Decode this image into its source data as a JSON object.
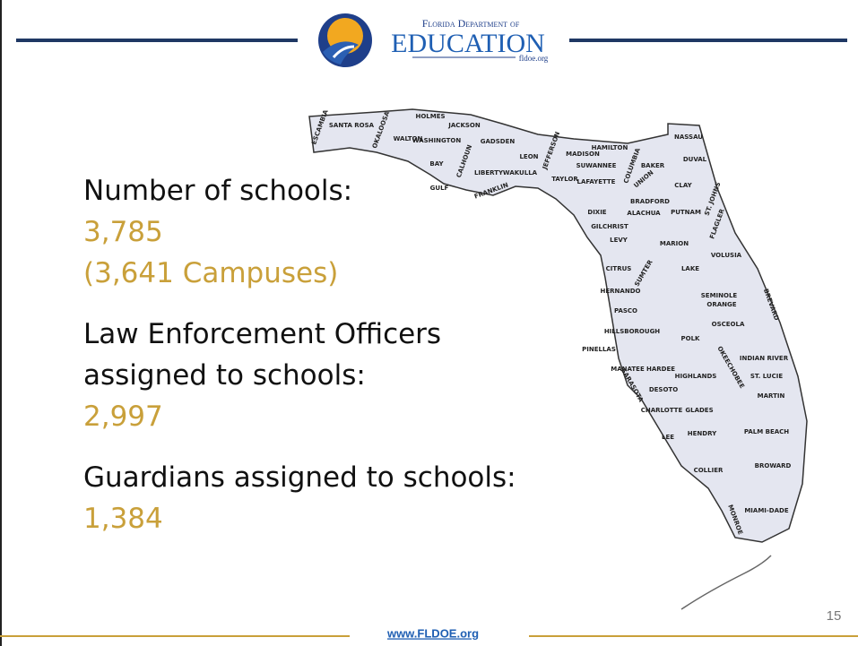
{
  "header": {
    "org_line": "Florida Department of",
    "org_name": "EDUCATION",
    "org_url": "fldoe.org"
  },
  "content": [
    {
      "label": [
        "Number of schools:"
      ],
      "value": "3,785",
      "note": "(3,641 Campuses)"
    },
    {
      "label": [
        "Law Enforcement Officers",
        "assigned to schools:"
      ],
      "value": "2,997"
    },
    {
      "label": [
        "Guardians assigned to schools:"
      ],
      "value": "1,384"
    }
  ],
  "map": {
    "counties": [
      "ESCAMBIA",
      "SANTA ROSA",
      "OKALOOSA",
      "WALTON",
      "HOLMES",
      "WASHINGTON",
      "JACKSON",
      "BAY",
      "CALHOUN",
      "GADSDEN",
      "GULF",
      "LIBERTY",
      "WAKULLA",
      "FRANKLIN",
      "LEON",
      "JEFFERSON",
      "MADISON",
      "TAYLOR",
      "HAMILTON",
      "SUWANNEE",
      "LAFAYETTE",
      "COLUMBIA",
      "BAKER",
      "UNION",
      "NASSAU",
      "DUVAL",
      "CLAY",
      "ST. JOHNS",
      "DIXIE",
      "BRADFORD",
      "ALACHUA",
      "PUTNAM",
      "FLAGLER",
      "GILCHRIST",
      "LEVY",
      "MARION",
      "VOLUSIA",
      "CITRUS",
      "SUMTER",
      "LAKE",
      "HERNANDO",
      "PASCO",
      "SEMINOLE",
      "ORANGE",
      "BREVARD",
      "HILLSBOROUGH",
      "PINELLAS",
      "POLK",
      "OSCEOLA",
      "INDIAN RIVER",
      "MANATEE",
      "HARDEE",
      "HIGHLANDS",
      "OKEECHOBEE",
      "ST. LUCIE",
      "SARASOTA",
      "DESOTO",
      "MARTIN",
      "CHARLOTTE",
      "GLADES",
      "LEE",
      "HENDRY",
      "PALM BEACH",
      "COLLIER",
      "BROWARD",
      "MIAMI-DADE",
      "MONROE"
    ]
  },
  "footer": {
    "url": "www.FLDOE.org",
    "page": "15"
  }
}
